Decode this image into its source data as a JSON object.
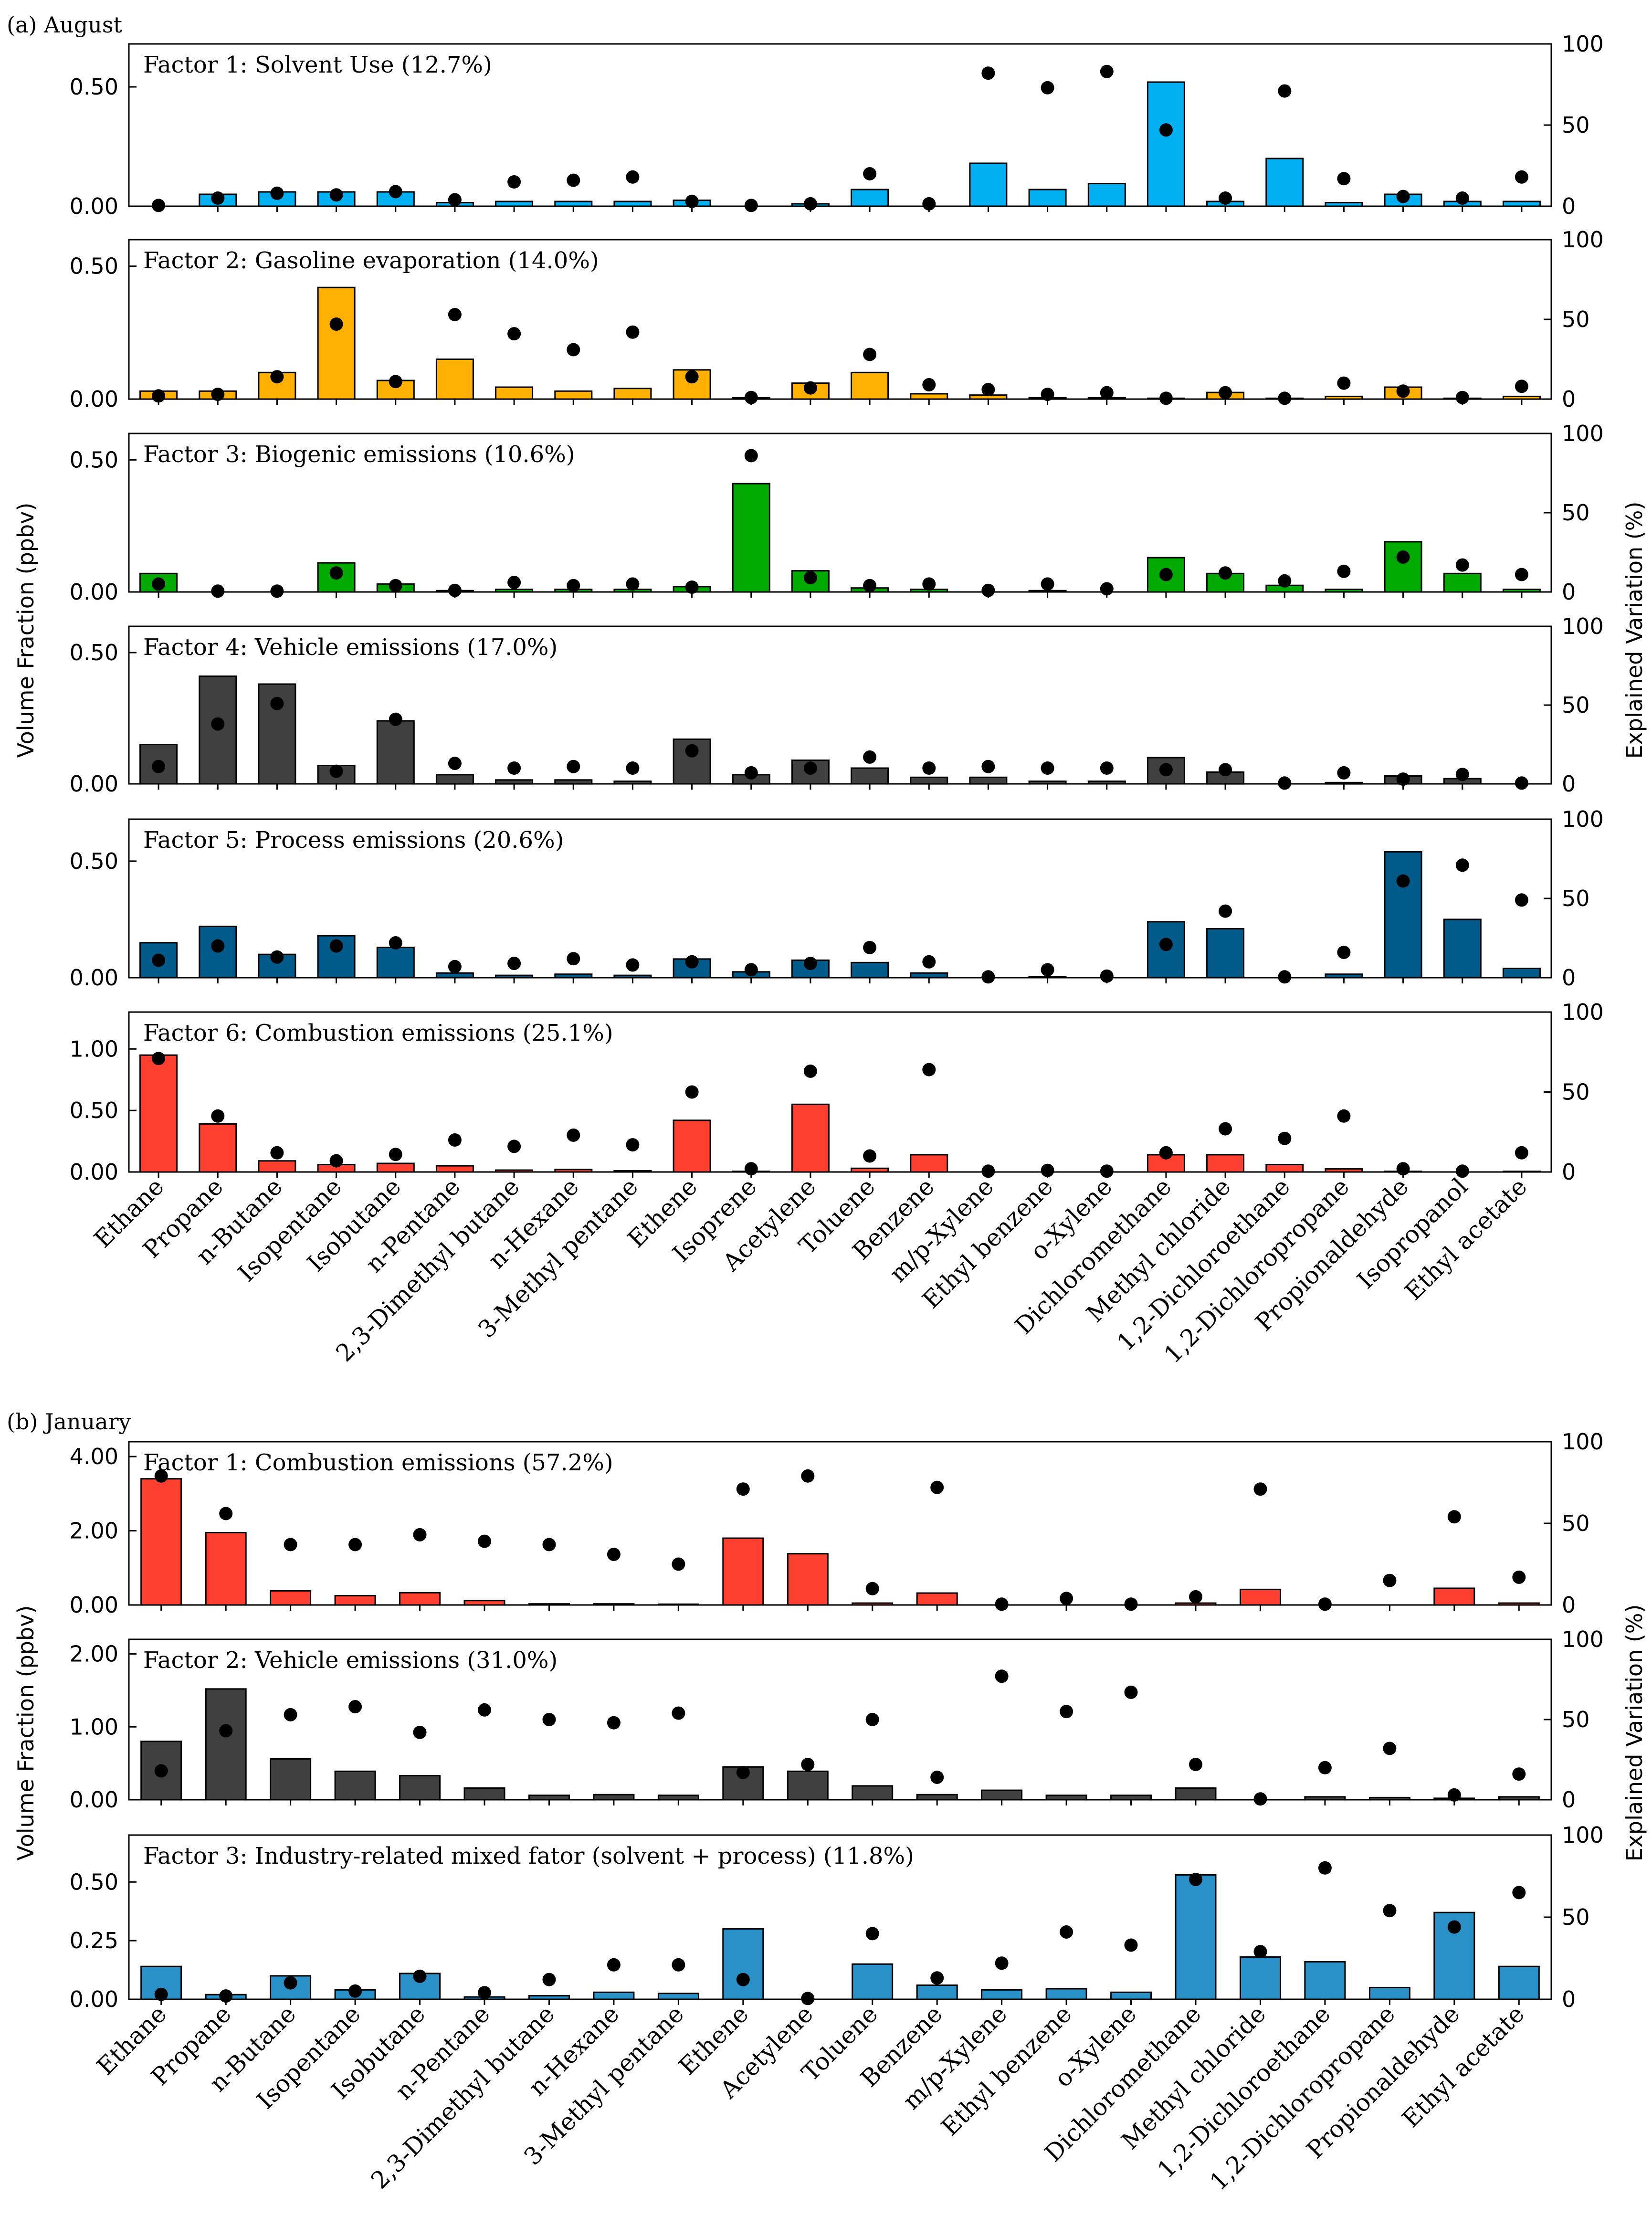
{
  "figure": {
    "section_a_label": "(a) August",
    "section_b_label": "(b) January",
    "left_axis_label": "Volume Fraction (ppbv)",
    "right_axis_label": "Explained Variation (%)"
  },
  "colors": {
    "solvent": "#00b0f0",
    "gasoline": "#ffb000",
    "biogenic": "#00aa00",
    "vehicle": "#404040",
    "process": "#005a8a",
    "combustion": "#ff4030",
    "industry": "#2990c8"
  },
  "chart_data": [
    {
      "type": "bar",
      "panel": "a",
      "title": "Factor 1: Solvent Use (12.7%)",
      "color_key": "solvent",
      "categories": [
        "Ethane",
        "Propane",
        "n-Butane",
        "Isopentane",
        "Isobutane",
        "n-Pentane",
        "2,3-Dimethyl butane",
        "n-Hexane",
        "3-Methyl pentane",
        "Ethene",
        "Isoprene",
        "Acetylene",
        "Toluene",
        "Benzene",
        "m/p-Xylene",
        "Ethyl benzene",
        "o-Xylene",
        "Dichloromethane",
        "Methyl chloride",
        "1,2-Dichloroethane",
        "1,2-Dichloropropane",
        "Propionaldehyde",
        "Isopropanol",
        "Ethyl acetate"
      ],
      "values": [
        0.0,
        0.05,
        0.06,
        0.06,
        0.06,
        0.015,
        0.02,
        0.02,
        0.02,
        0.025,
        0.0,
        0.01,
        0.07,
        0.0,
        0.18,
        0.07,
        0.095,
        0.52,
        0.02,
        0.2,
        0.015,
        0.05,
        0.02,
        0.02
      ],
      "explained": [
        0.5,
        5,
        8,
        7,
        9,
        4,
        15,
        16,
        18,
        3,
        0.5,
        1.5,
        20,
        1.5,
        82,
        73,
        83,
        47,
        5,
        71,
        17,
        6,
        5,
        18
      ],
      "ylim": [
        0,
        0.68
      ],
      "yticks": [
        "0.00",
        "0.50"
      ],
      "ytick_values": [
        0,
        0.5
      ],
      "y2lim": [
        0,
        100
      ],
      "y2ticks": [
        "0",
        "50",
        "100"
      ]
    },
    {
      "type": "bar",
      "panel": "a",
      "title": "Factor 2: Gasoline evaporation (14.0%)",
      "color_key": "gasoline",
      "categories": [
        "Ethane",
        "Propane",
        "n-Butane",
        "Isopentane",
        "Isobutane",
        "n-Pentane",
        "2,3-Dimethyl butane",
        "n-Hexane",
        "3-Methyl pentane",
        "Ethene",
        "Isoprene",
        "Acetylene",
        "Toluene",
        "Benzene",
        "m/p-Xylene",
        "Ethyl benzene",
        "o-Xylene",
        "Dichloromethane",
        "Methyl chloride",
        "1,2-Dichloroethane",
        "1,2-Dichloropropane",
        "Propionaldehyde",
        "Isopropanol",
        "Ethyl acetate"
      ],
      "values": [
        0.03,
        0.03,
        0.1,
        0.42,
        0.07,
        0.15,
        0.045,
        0.03,
        0.04,
        0.11,
        0.005,
        0.06,
        0.1,
        0.02,
        0.015,
        0.005,
        0.005,
        0.003,
        0.025,
        0.003,
        0.01,
        0.045,
        0.003,
        0.01
      ],
      "explained": [
        2,
        3,
        14,
        47,
        11,
        53,
        41,
        31,
        42,
        14,
        1,
        7,
        28,
        9,
        6,
        3,
        4,
        0.5,
        4,
        0.5,
        10,
        5,
        1,
        8
      ],
      "ylim": [
        0,
        0.6
      ],
      "yticks": [
        "0.00",
        "0.50"
      ],
      "ytick_values": [
        0,
        0.5
      ],
      "y2lim": [
        0,
        100
      ],
      "y2ticks": [
        "0",
        "50",
        "100"
      ]
    },
    {
      "type": "bar",
      "panel": "a",
      "title": "Factor 3: Biogenic emissions (10.6%)",
      "color_key": "biogenic",
      "categories": [
        "Ethane",
        "Propane",
        "n-Butane",
        "Isopentane",
        "Isobutane",
        "n-Pentane",
        "2,3-Dimethyl butane",
        "n-Hexane",
        "3-Methyl pentane",
        "Ethene",
        "Isoprene",
        "Acetylene",
        "Toluene",
        "Benzene",
        "m/p-Xylene",
        "Ethyl benzene",
        "o-Xylene",
        "Dichloromethane",
        "Methyl chloride",
        "1,2-Dichloroethane",
        "1,2-Dichloropropane",
        "Propionaldehyde",
        "Isopropanol",
        "Ethyl acetate"
      ],
      "values": [
        0.07,
        0.0,
        0.0,
        0.11,
        0.03,
        0.005,
        0.01,
        0.01,
        0.01,
        0.02,
        0.41,
        0.08,
        0.015,
        0.01,
        0.0,
        0.005,
        0.0,
        0.13,
        0.07,
        0.025,
        0.01,
        0.19,
        0.07,
        0.01
      ],
      "explained": [
        5,
        0.5,
        0.5,
        12,
        4,
        1,
        6,
        4,
        5,
        3,
        86,
        9,
        4,
        5,
        1,
        5,
        2,
        11,
        12,
        7,
        13,
        22,
        17,
        11
      ],
      "ylim": [
        0,
        0.6
      ],
      "yticks": [
        "0.00",
        "0.50"
      ],
      "ytick_values": [
        0,
        0.5
      ],
      "y2lim": [
        0,
        100
      ],
      "y2ticks": [
        "0",
        "50",
        "100"
      ]
    },
    {
      "type": "bar",
      "panel": "a",
      "title": "Factor 4: Vehicle emissions (17.0%)",
      "color_key": "vehicle",
      "categories": [
        "Ethane",
        "Propane",
        "n-Butane",
        "Isopentane",
        "Isobutane",
        "n-Pentane",
        "2,3-Dimethyl butane",
        "n-Hexane",
        "3-Methyl pentane",
        "Ethene",
        "Isoprene",
        "Acetylene",
        "Toluene",
        "Benzene",
        "m/p-Xylene",
        "Ethyl benzene",
        "o-Xylene",
        "Dichloromethane",
        "Methyl chloride",
        "1,2-Dichloroethane",
        "1,2-Dichloropropane",
        "Propionaldehyde",
        "Isopropanol",
        "Ethyl acetate"
      ],
      "values": [
        0.15,
        0.41,
        0.38,
        0.07,
        0.24,
        0.035,
        0.015,
        0.015,
        0.01,
        0.17,
        0.035,
        0.09,
        0.06,
        0.025,
        0.025,
        0.01,
        0.01,
        0.1,
        0.045,
        0.0,
        0.005,
        0.03,
        0.02,
        0.0
      ],
      "explained": [
        11,
        38,
        51,
        8,
        41,
        13,
        10,
        11,
        10,
        21,
        7,
        10,
        17,
        10,
        11,
        10,
        10,
        9,
        9,
        0.5,
        7,
        3,
        6,
        0.5
      ],
      "ylim": [
        0,
        0.6
      ],
      "yticks": [
        "0.00",
        "0.50"
      ],
      "ytick_values": [
        0,
        0.5
      ],
      "y2lim": [
        0,
        100
      ],
      "y2ticks": [
        "0",
        "50",
        "100"
      ]
    },
    {
      "type": "bar",
      "panel": "a",
      "title": "Factor 5: Process emissions (20.6%)",
      "color_key": "process",
      "categories": [
        "Ethane",
        "Propane",
        "n-Butane",
        "Isopentane",
        "Isobutane",
        "n-Pentane",
        "2,3-Dimethyl butane",
        "n-Hexane",
        "3-Methyl pentane",
        "Ethene",
        "Isoprene",
        "Acetylene",
        "Toluene",
        "Benzene",
        "m/p-Xylene",
        "Ethyl benzene",
        "o-Xylene",
        "Dichloromethane",
        "Methyl chloride",
        "1,2-Dichloroethane",
        "1,2-Dichloropropane",
        "Propionaldehyde",
        "Isopropanol",
        "Ethyl acetate"
      ],
      "values": [
        0.15,
        0.22,
        0.1,
        0.18,
        0.13,
        0.02,
        0.01,
        0.015,
        0.01,
        0.08,
        0.025,
        0.075,
        0.065,
        0.02,
        0.0,
        0.005,
        0.0,
        0.24,
        0.21,
        0.0,
        0.015,
        0.54,
        0.25,
        0.04
      ],
      "explained": [
        11,
        20,
        13,
        20,
        22,
        7,
        9,
        12,
        8,
        10,
        5,
        9,
        19,
        10,
        0.5,
        5,
        1,
        21,
        42,
        0.5,
        16,
        61,
        71,
        49
      ],
      "ylim": [
        0,
        0.68
      ],
      "yticks": [
        "0.00",
        "0.50"
      ],
      "ytick_values": [
        0,
        0.5
      ],
      "y2lim": [
        0,
        100
      ],
      "y2ticks": [
        "0",
        "50",
        "100"
      ]
    },
    {
      "type": "bar",
      "panel": "a",
      "title": "Factor 6: Combustion emissions (25.1%)",
      "color_key": "combustion",
      "categories": [
        "Ethane",
        "Propane",
        "n-Butane",
        "Isopentane",
        "Isobutane",
        "n-Pentane",
        "2,3-Dimethyl butane",
        "n-Hexane",
        "3-Methyl pentane",
        "Ethene",
        "Isoprene",
        "Acetylene",
        "Toluene",
        "Benzene",
        "m/p-Xylene",
        "Ethyl benzene",
        "o-Xylene",
        "Dichloromethane",
        "Methyl chloride",
        "1,2-Dichloroethane",
        "1,2-Dichloropropane",
        "Propionaldehyde",
        "Isopropanol",
        "Ethyl acetate"
      ],
      "values": [
        0.95,
        0.39,
        0.09,
        0.06,
        0.07,
        0.05,
        0.015,
        0.02,
        0.01,
        0.42,
        0.005,
        0.55,
        0.03,
        0.14,
        0.0,
        0.0,
        0.0,
        0.14,
        0.14,
        0.06,
        0.025,
        0.005,
        0.0,
        0.005
      ],
      "explained": [
        71,
        35,
        12,
        7,
        11,
        20,
        16,
        23,
        17,
        50,
        2,
        63,
        10,
        64,
        0.5,
        1,
        0.5,
        12,
        27,
        21,
        35,
        2,
        0.5,
        12
      ],
      "ylim": [
        0,
        1.3
      ],
      "yticks": [
        "0.00",
        "0.50",
        "1.00"
      ],
      "ytick_values": [
        0,
        0.5,
        1.0
      ],
      "y2lim": [
        0,
        100
      ],
      "y2ticks": [
        "0",
        "50",
        "100"
      ]
    },
    {
      "type": "bar",
      "panel": "b",
      "title": "Factor 1: Combustion emissions (57.2%)",
      "color_key": "combustion",
      "categories": [
        "Ethane",
        "Propane",
        "n-Butane",
        "Isopentane",
        "Isobutane",
        "n-Pentane",
        "2,3-Dimethyl butane",
        "n-Hexane",
        "3-Methyl pentane",
        "Ethene",
        "Acetylene",
        "Toluene",
        "Benzene",
        "m/p-Xylene",
        "Ethyl benzene",
        "o-Xylene",
        "Dichloromethane",
        "Methyl chloride",
        "1,2-Dichloroethane",
        "1,2-Dichloropropane",
        "Propionaldehyde",
        "Ethyl acetate"
      ],
      "values": [
        3.4,
        1.95,
        0.38,
        0.25,
        0.33,
        0.12,
        0.03,
        0.03,
        0.02,
        1.8,
        1.38,
        0.05,
        0.32,
        0.0,
        0.0,
        0.0,
        0.05,
        0.42,
        0.0,
        0.0,
        0.45,
        0.05
      ],
      "explained": [
        79,
        56,
        37,
        37,
        43,
        39,
        37,
        31,
        25,
        71,
        79,
        10,
        72,
        0.5,
        4,
        0.5,
        5,
        71,
        0.5,
        15,
        54,
        17
      ],
      "ylim": [
        0,
        4.4
      ],
      "yticks": [
        "0.00",
        "2.00",
        "4.00"
      ],
      "ytick_values": [
        0,
        2,
        4
      ],
      "y2lim": [
        0,
        100
      ],
      "y2ticks": [
        "0",
        "50",
        "100"
      ]
    },
    {
      "type": "bar",
      "panel": "b",
      "title": "Factor 2: Vehicle emissions (31.0%)",
      "color_key": "vehicle",
      "categories": [
        "Ethane",
        "Propane",
        "n-Butane",
        "Isopentane",
        "Isobutane",
        "n-Pentane",
        "2,3-Dimethyl butane",
        "n-Hexane",
        "3-Methyl pentane",
        "Ethene",
        "Acetylene",
        "Toluene",
        "Benzene",
        "m/p-Xylene",
        "Ethyl benzene",
        "o-Xylene",
        "Dichloromethane",
        "Methyl chloride",
        "1,2-Dichloroethane",
        "1,2-Dichloropropane",
        "Propionaldehyde",
        "Ethyl acetate"
      ],
      "values": [
        0.8,
        1.52,
        0.56,
        0.39,
        0.33,
        0.16,
        0.06,
        0.07,
        0.06,
        0.45,
        0.39,
        0.19,
        0.07,
        0.13,
        0.06,
        0.06,
        0.16,
        0.0,
        0.04,
        0.03,
        0.02,
        0.04
      ],
      "explained": [
        18,
        43,
        53,
        58,
        42,
        56,
        50,
        48,
        54,
        17,
        22,
        50,
        14,
        77,
        55,
        67,
        22,
        0.5,
        20,
        32,
        3,
        16
      ],
      "ylim": [
        0,
        2.2
      ],
      "yticks": [
        "0.00",
        "1.00",
        "2.00"
      ],
      "ytick_values": [
        0,
        1,
        2
      ],
      "y2lim": [
        0,
        100
      ],
      "y2ticks": [
        "0",
        "50",
        "100"
      ]
    },
    {
      "type": "bar",
      "panel": "b",
      "title": "Factor 3: Industry-related mixed fator (solvent + process) (11.8%)",
      "color_key": "industry",
      "categories": [
        "Ethane",
        "Propane",
        "n-Butane",
        "Isopentane",
        "Isobutane",
        "n-Pentane",
        "2,3-Dimethyl butane",
        "n-Hexane",
        "3-Methyl pentane",
        "Ethene",
        "Acetylene",
        "Toluene",
        "Benzene",
        "m/p-Xylene",
        "Ethyl benzene",
        "o-Xylene",
        "Dichloromethane",
        "Methyl chloride",
        "1,2-Dichloroethane",
        "1,2-Dichloropropane",
        "Propionaldehyde",
        "Ethyl acetate"
      ],
      "values": [
        0.14,
        0.02,
        0.1,
        0.04,
        0.11,
        0.01,
        0.015,
        0.03,
        0.025,
        0.3,
        0.0,
        0.15,
        0.06,
        0.04,
        0.045,
        0.03,
        0.53,
        0.18,
        0.16,
        0.05,
        0.37,
        0.14
      ],
      "explained": [
        3,
        2,
        10,
        5,
        14,
        4,
        12,
        21,
        21,
        12,
        0.5,
        40,
        13,
        22,
        41,
        33,
        73,
        29,
        80,
        54,
        44,
        65
      ],
      "ylim": [
        0,
        0.7
      ],
      "yticks": [
        "0.00",
        "0.25",
        "0.50"
      ],
      "ytick_values": [
        0,
        0.25,
        0.5
      ],
      "y2lim": [
        0,
        100
      ],
      "y2ticks": [
        "0",
        "50",
        "100"
      ]
    }
  ]
}
